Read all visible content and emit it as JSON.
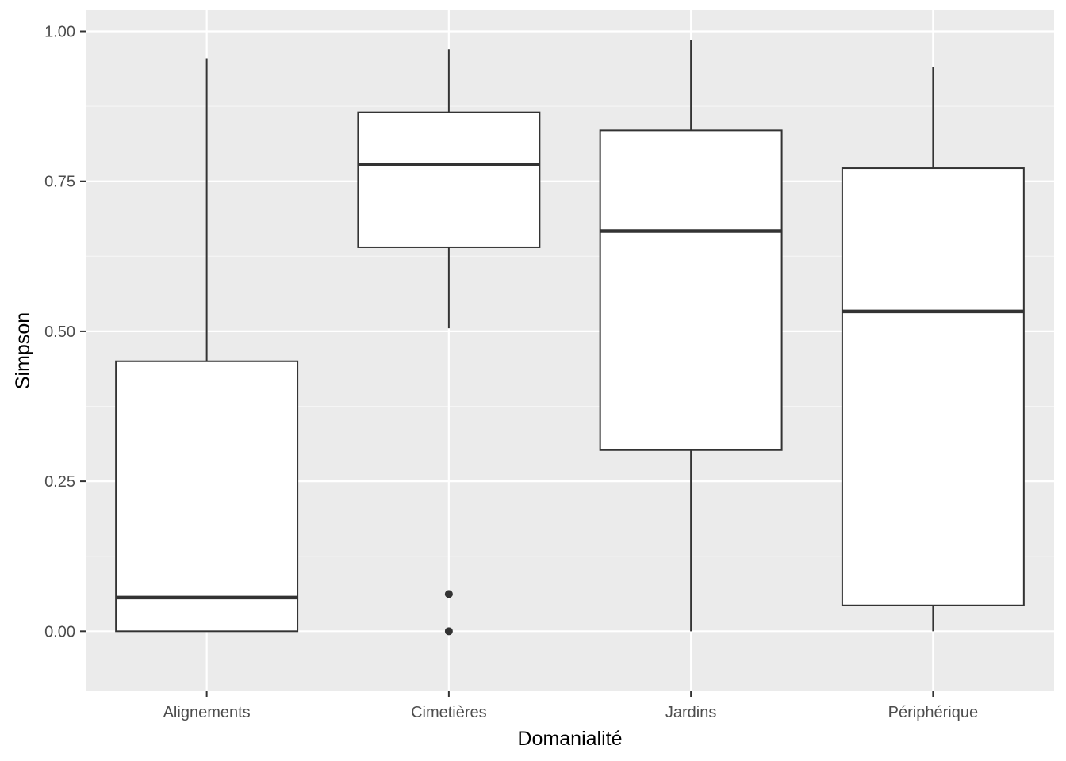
{
  "chart_data": {
    "type": "boxplot",
    "xlabel": "Domanialité",
    "ylabel": "Simpson",
    "ylim": [
      -0.1,
      1.035
    ],
    "yticks": [
      0,
      0.25,
      0.5,
      0.75,
      1.0
    ],
    "ytick_labels": [
      "0.00",
      "0.25",
      "0.50",
      "0.75",
      "1.00"
    ],
    "grid": true,
    "legend": "none",
    "categories": [
      "Alignements",
      "Cimetières",
      "Jardins",
      "Périphérique"
    ],
    "boxes": [
      {
        "category": "Alignements",
        "whisker_low": 0.0,
        "q1": 0.0,
        "median": 0.056,
        "q3": 0.45,
        "whisker_high": 0.955,
        "outliers": []
      },
      {
        "category": "Cimetières",
        "whisker_low": 0.505,
        "q1": 0.64,
        "median": 0.778,
        "q3": 0.865,
        "whisker_high": 0.97,
        "outliers": [
          0.0,
          0.062
        ]
      },
      {
        "category": "Jardins",
        "whisker_low": 0.0,
        "q1": 0.302,
        "median": 0.667,
        "q3": 0.835,
        "whisker_high": 0.985,
        "outliers": []
      },
      {
        "category": "Périphérique",
        "whisker_low": 0.0,
        "q1": 0.043,
        "median": 0.533,
        "q3": 0.772,
        "whisker_high": 0.94,
        "outliers": []
      }
    ],
    "colors": {
      "panel": "#ebebeb",
      "grid_major": "#ffffff",
      "grid_minor": "#f5f5f5",
      "box_fill": "#ffffff",
      "box_line": "#333333",
      "tick": "#333333"
    }
  }
}
